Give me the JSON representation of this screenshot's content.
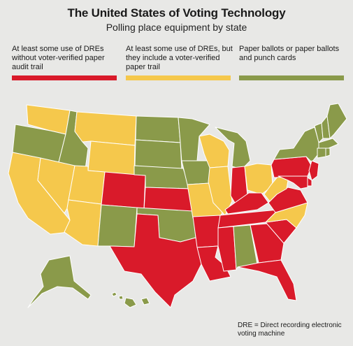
{
  "title": "The United States of Voting Technology",
  "subtitle": "Polling place equipment by state",
  "legend": [
    {
      "key": "dre",
      "text": "At least some use of DREs without voter-verified paper audit trail",
      "color": "#d91a2a"
    },
    {
      "key": "dre_paper",
      "text": "At least some use of DREs, but they include a voter-verified paper trail",
      "color": "#f5c84c"
    },
    {
      "key": "paper",
      "text": "Paper ballots or paper ballots and punch cards",
      "color": "#8a9a4a"
    }
  ],
  "note": "DRE = Direct recording electronic voting machine",
  "states": {
    "WA": "dre_paper",
    "OR": "paper",
    "CA": "dre_paper",
    "NV": "dre_paper",
    "ID": "paper",
    "MT": "dre_paper",
    "WY": "dre_paper",
    "UT": "dre_paper",
    "AZ": "dre_paper",
    "CO": "dre",
    "NM": "paper",
    "ND": "paper",
    "SD": "paper",
    "NE": "paper",
    "KS": "dre",
    "OK": "paper",
    "TX": "dre",
    "MN": "paper",
    "IA": "paper",
    "MO": "dre_paper",
    "AR": "dre",
    "LA": "dre",
    "WI": "dre_paper",
    "IL": "dre_paper",
    "MI": "paper",
    "IN": "dre",
    "OH": "dre_paper",
    "KY": "dre",
    "TN": "dre",
    "MS": "dre",
    "AL": "paper",
    "GA": "dre",
    "FL": "dre",
    "SC": "dre",
    "NC": "dre_paper",
    "VA": "dre",
    "WV": "dre_paper",
    "PA": "dre",
    "NY": "paper",
    "VT": "paper",
    "NH": "paper",
    "ME": "paper",
    "MA": "paper",
    "CT": "paper",
    "RI": "paper",
    "NJ": "dre",
    "DE": "dre",
    "MD": "dre",
    "AK": "paper",
    "HI": "paper"
  }
}
